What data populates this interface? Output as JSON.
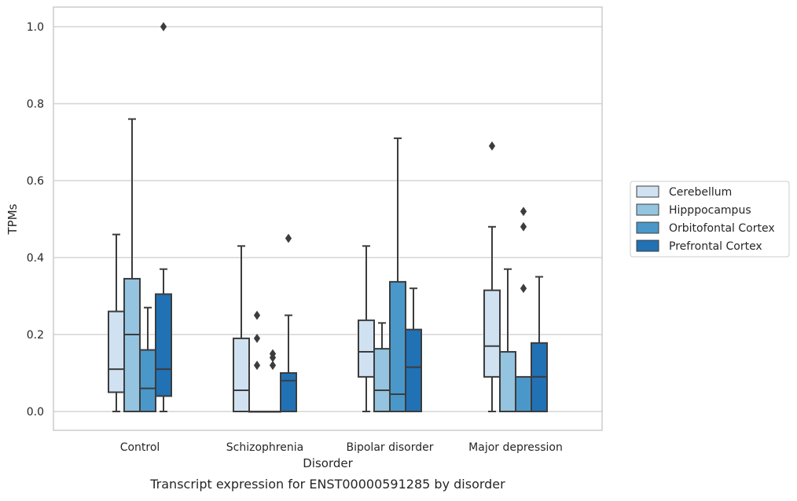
{
  "chart_data": {
    "type": "boxplot",
    "title": "Transcript expression for ENST00000591285 by disorder",
    "xlabel": "Disorder",
    "ylabel": "TPMs",
    "ylim": [
      -0.05,
      1.05
    ],
    "yticks": [
      0.0,
      0.2,
      0.4,
      0.6,
      0.8,
      1.0
    ],
    "ytick_labels": [
      "0.0",
      "0.2",
      "0.4",
      "0.6",
      "0.8",
      "1.0"
    ],
    "grid": true,
    "legend_position": "right-center",
    "categories": [
      "Control",
      "Schizophrenia",
      "Bipolar disorder",
      "Major depression"
    ],
    "series": [
      {
        "name": "Cerebellum",
        "color": "#d0e1f2",
        "boxes": [
          {
            "whisker_low": 0.0,
            "q1": 0.05,
            "median": 0.11,
            "q3": 0.26,
            "whisker_high": 0.46,
            "outliers": []
          },
          {
            "whisker_low": 0.0,
            "q1": 0.0,
            "median": 0.055,
            "q3": 0.19,
            "whisker_high": 0.43,
            "outliers": []
          },
          {
            "whisker_low": 0.0,
            "q1": 0.09,
            "median": 0.155,
            "q3": 0.237,
            "whisker_high": 0.43,
            "outliers": []
          },
          {
            "whisker_low": 0.0,
            "q1": 0.09,
            "median": 0.17,
            "q3": 0.315,
            "whisker_high": 0.48,
            "outliers": [
              0.69
            ]
          }
        ]
      },
      {
        "name": "Hipppocampus",
        "color": "#94c4df",
        "boxes": [
          {
            "whisker_low": 0.0,
            "q1": 0.0,
            "median": 0.2,
            "q3": 0.345,
            "whisker_high": 0.76,
            "outliers": []
          },
          {
            "whisker_low": 0.0,
            "q1": 0.0,
            "median": 0.0,
            "q3": 0.0,
            "whisker_high": 0.0,
            "outliers": [
              0.12,
              0.19,
              0.25
            ]
          },
          {
            "whisker_low": 0.0,
            "q1": 0.0,
            "median": 0.055,
            "q3": 0.163,
            "whisker_high": 0.23,
            "outliers": []
          },
          {
            "whisker_low": 0.0,
            "q1": 0.0,
            "median": 0.0,
            "q3": 0.155,
            "whisker_high": 0.37,
            "outliers": []
          }
        ]
      },
      {
        "name": "Orbitofontal Cortex",
        "color": "#4a98c9",
        "boxes": [
          {
            "whisker_low": 0.0,
            "q1": 0.0,
            "median": 0.06,
            "q3": 0.16,
            "whisker_high": 0.27,
            "outliers": []
          },
          {
            "whisker_low": 0.0,
            "q1": 0.0,
            "median": 0.0,
            "q3": 0.0,
            "whisker_high": 0.0,
            "outliers": [
              0.12,
              0.14,
              0.15
            ]
          },
          {
            "whisker_low": 0.0,
            "q1": 0.0,
            "median": 0.045,
            "q3": 0.337,
            "whisker_high": 0.71,
            "outliers": []
          },
          {
            "whisker_low": 0.0,
            "q1": 0.0,
            "median": 0.0,
            "q3": 0.09,
            "whisker_high": 0.09,
            "outliers": [
              0.32,
              0.48,
              0.52
            ]
          }
        ]
      },
      {
        "name": "Prefrontal Cortex",
        "color": "#2171b5",
        "boxes": [
          {
            "whisker_low": 0.0,
            "q1": 0.04,
            "median": 0.11,
            "q3": 0.305,
            "whisker_high": 0.37,
            "outliers": [
              1.0
            ]
          },
          {
            "whisker_low": 0.0,
            "q1": 0.0,
            "median": 0.08,
            "q3": 0.1,
            "whisker_high": 0.25,
            "outliers": [
              0.45
            ]
          },
          {
            "whisker_low": 0.0,
            "q1": 0.0,
            "median": 0.115,
            "q3": 0.213,
            "whisker_high": 0.32,
            "outliers": []
          },
          {
            "whisker_low": 0.0,
            "q1": 0.0,
            "median": 0.09,
            "q3": 0.178,
            "whisker_high": 0.35,
            "outliers": []
          }
        ]
      }
    ]
  }
}
